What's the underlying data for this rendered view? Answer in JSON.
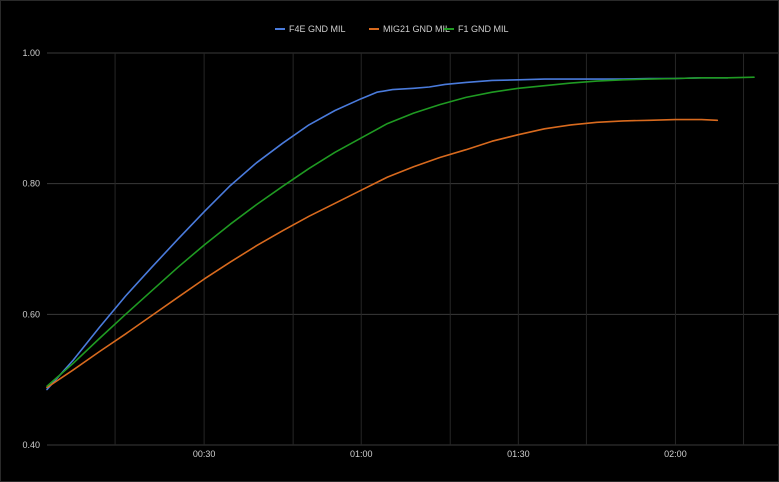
{
  "chart_data": {
    "type": "line",
    "title": "",
    "xlabel": "",
    "ylabel": "",
    "x_unit": "seconds",
    "xlim": [
      0,
      135
    ],
    "ylim": [
      0.4,
      1.0
    ],
    "grid": true,
    "legend_position": "top-center",
    "background": "#000000",
    "y_ticks": [
      {
        "value": 0.4,
        "label": "0.40"
      },
      {
        "value": 0.6,
        "label": "0.60"
      },
      {
        "value": 0.8,
        "label": "0.80"
      },
      {
        "value": 1.0,
        "label": "1.00"
      }
    ],
    "x_ticks": [
      {
        "value": 30,
        "label": "00:30"
      },
      {
        "value": 60,
        "label": "01:00"
      },
      {
        "value": 90,
        "label": "01:30"
      },
      {
        "value": 120,
        "label": "02:00"
      }
    ],
    "x_minor_grid": [
      13,
      47,
      77,
      103,
      133
    ],
    "series": [
      {
        "name": "F4E GND MIL",
        "color": "#4a7bdc",
        "points": [
          [
            0,
            0.485
          ],
          [
            5,
            0.53
          ],
          [
            10,
            0.58
          ],
          [
            15,
            0.628
          ],
          [
            20,
            0.672
          ],
          [
            25,
            0.715
          ],
          [
            30,
            0.757
          ],
          [
            35,
            0.797
          ],
          [
            40,
            0.832
          ],
          [
            45,
            0.862
          ],
          [
            50,
            0.89
          ],
          [
            55,
            0.912
          ],
          [
            60,
            0.93
          ],
          [
            63,
            0.94
          ],
          [
            66,
            0.944
          ],
          [
            70,
            0.946
          ],
          [
            73,
            0.948
          ],
          [
            76,
            0.952
          ],
          [
            80,
            0.955
          ],
          [
            85,
            0.958
          ],
          [
            90,
            0.959
          ],
          [
            95,
            0.96
          ],
          [
            100,
            0.96
          ],
          [
            105,
            0.96
          ],
          [
            110,
            0.96
          ],
          [
            115,
            0.961
          ],
          [
            120,
            0.961
          ],
          [
            125,
            0.962
          ],
          [
            130,
            0.962
          ]
        ]
      },
      {
        "name": "MIG21 GND MIL",
        "color": "#d86a1e",
        "points": [
          [
            0,
            0.488
          ],
          [
            5,
            0.515
          ],
          [
            10,
            0.543
          ],
          [
            15,
            0.57
          ],
          [
            20,
            0.598
          ],
          [
            25,
            0.626
          ],
          [
            30,
            0.654
          ],
          [
            35,
            0.68
          ],
          [
            40,
            0.705
          ],
          [
            45,
            0.728
          ],
          [
            50,
            0.75
          ],
          [
            55,
            0.77
          ],
          [
            60,
            0.79
          ],
          [
            65,
            0.81
          ],
          [
            70,
            0.826
          ],
          [
            75,
            0.84
          ],
          [
            80,
            0.852
          ],
          [
            85,
            0.865
          ],
          [
            90,
            0.875
          ],
          [
            95,
            0.884
          ],
          [
            100,
            0.89
          ],
          [
            105,
            0.894
          ],
          [
            110,
            0.896
          ],
          [
            115,
            0.897
          ],
          [
            120,
            0.898
          ],
          [
            125,
            0.898
          ],
          [
            128,
            0.897
          ]
        ]
      },
      {
        "name": "F1 GND MIL",
        "color": "#1f9a22",
        "points": [
          [
            0,
            0.49
          ],
          [
            5,
            0.525
          ],
          [
            10,
            0.563
          ],
          [
            15,
            0.6
          ],
          [
            20,
            0.636
          ],
          [
            25,
            0.672
          ],
          [
            30,
            0.706
          ],
          [
            35,
            0.738
          ],
          [
            40,
            0.768
          ],
          [
            45,
            0.796
          ],
          [
            50,
            0.823
          ],
          [
            55,
            0.848
          ],
          [
            60,
            0.87
          ],
          [
            65,
            0.892
          ],
          [
            70,
            0.908
          ],
          [
            75,
            0.921
          ],
          [
            80,
            0.932
          ],
          [
            85,
            0.94
          ],
          [
            90,
            0.946
          ],
          [
            95,
            0.95
          ],
          [
            100,
            0.954
          ],
          [
            105,
            0.957
          ],
          [
            110,
            0.959
          ],
          [
            115,
            0.96
          ],
          [
            120,
            0.961
          ],
          [
            125,
            0.962
          ],
          [
            130,
            0.962
          ],
          [
            135,
            0.963
          ]
        ]
      }
    ]
  }
}
